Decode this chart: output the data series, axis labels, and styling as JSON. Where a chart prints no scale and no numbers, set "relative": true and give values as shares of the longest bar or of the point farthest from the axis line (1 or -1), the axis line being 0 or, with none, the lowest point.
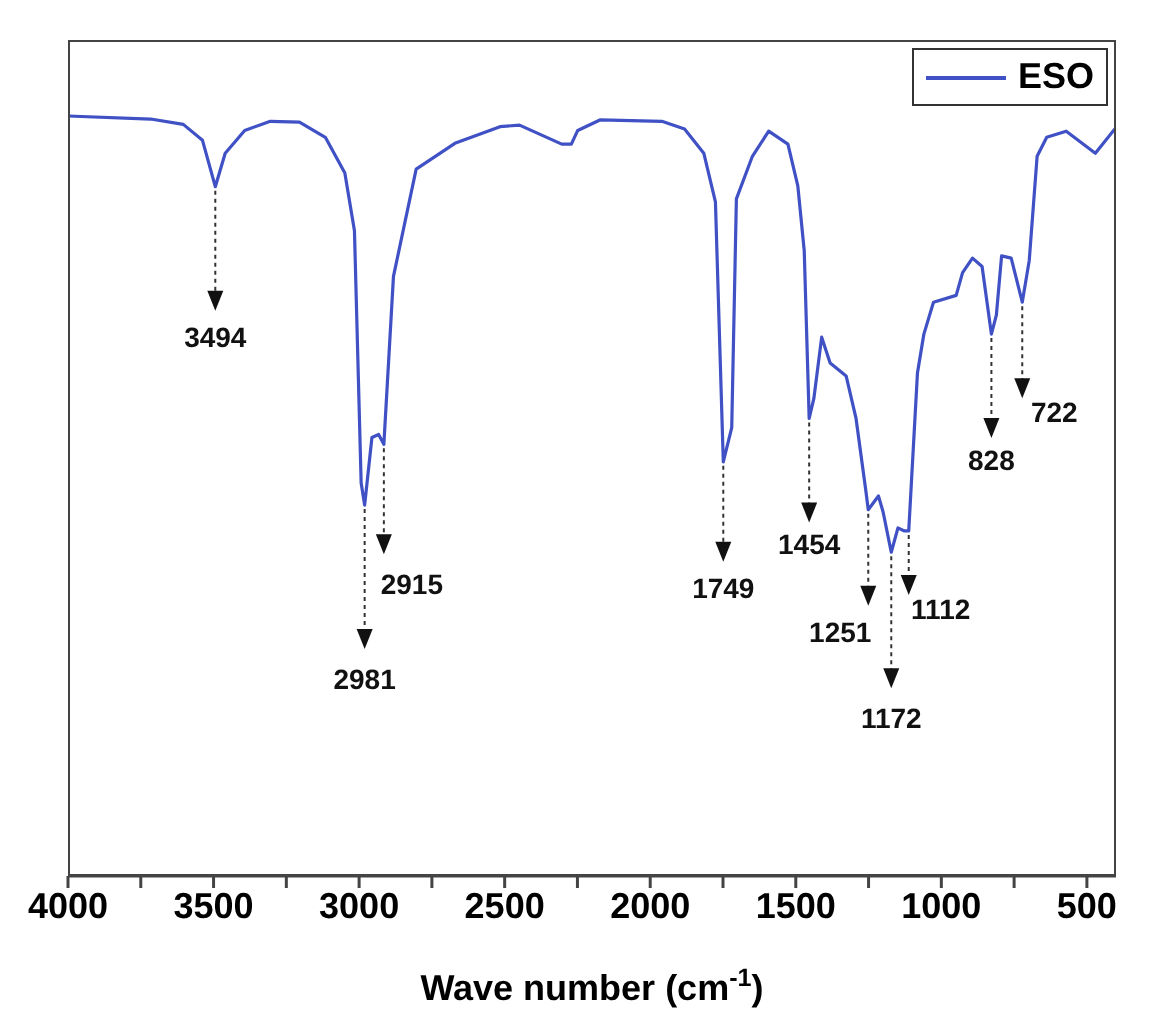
{
  "chart_data": {
    "type": "line",
    "relative": true,
    "xlabel": "Wave number (cm$^{-1}$)",
    "xlim": [
      4000,
      400
    ],
    "xticks": [
      4000,
      {
        "value": 3750,
        "label": null
      },
      3500,
      {
        "value": 3250,
        "label": null
      },
      3000,
      {
        "value": 2750,
        "label": null
      },
      2500,
      {
        "value": 2250,
        "label": null
      },
      2000,
      {
        "value": 1750,
        "label": null
      },
      1500,
      {
        "value": 1250,
        "label": null
      },
      1000,
      {
        "value": 750,
        "label": null
      },
      500
    ],
    "legend": "top right",
    "marker": "none",
    "line_style": "solid",
    "series": [
      {
        "name": "ESO",
        "color": "#3f51c4",
        "x": [
          4000,
          3716,
          3604,
          3538,
          3494,
          3460,
          3393,
          3305,
          3205,
          3116,
          3049,
          3016,
          2993,
          2981,
          2956,
          2933,
          2915,
          2882,
          2804,
          2671,
          2516,
          2449,
          2304,
          2271,
          2249,
          2171,
          1960,
          1882,
          1816,
          1776,
          1749,
          1720,
          1704,
          1649,
          1593,
          1527,
          1493,
          1471,
          1454,
          1438,
          1411,
          1382,
          1327,
          1293,
          1260,
          1251,
          1216,
          1200,
          1172,
          1149,
          1127,
          1112,
          1082,
          1060,
          1027,
          949,
          927,
          893,
          860,
          828,
          811,
          793,
          760,
          722,
          698,
          671,
          638,
          571,
          471,
          404
        ],
        "values": [
          1.0,
          0.996,
          0.989,
          0.968,
          0.907,
          0.951,
          0.981,
          0.993,
          0.992,
          0.972,
          0.925,
          0.849,
          0.517,
          0.488,
          0.577,
          0.581,
          0.568,
          0.789,
          0.93,
          0.964,
          0.986,
          0.988,
          0.963,
          0.963,
          0.981,
          0.995,
          0.993,
          0.983,
          0.951,
          0.887,
          0.545,
          0.59,
          0.891,
          0.947,
          0.98,
          0.963,
          0.908,
          0.823,
          0.602,
          0.628,
          0.709,
          0.675,
          0.658,
          0.602,
          0.509,
          0.482,
          0.5,
          0.479,
          0.426,
          0.458,
          0.454,
          0.454,
          0.662,
          0.713,
          0.755,
          0.764,
          0.794,
          0.813,
          0.802,
          0.713,
          0.738,
          0.816,
          0.813,
          0.755,
          0.81,
          0.947,
          0.972,
          0.98,
          0.951,
          0.983
        ]
      }
    ],
    "annotations": [
      {
        "text": "3494",
        "x": 3494,
        "y": 0.907
      },
      {
        "text": "2981",
        "x": 2981,
        "y": 0.488
      },
      {
        "text": "2915",
        "x": 2915,
        "y": 0.568
      },
      {
        "text": "1749",
        "x": 1749,
        "y": 0.545
      },
      {
        "text": "1454",
        "x": 1454,
        "y": 0.602
      },
      {
        "text": "1251",
        "x": 1251,
        "y": 0.482
      },
      {
        "text": "1172",
        "x": 1172,
        "y": 0.426
      },
      {
        "text": "1112",
        "x": 1112,
        "y": 0.454
      },
      {
        "text": "828",
        "x": 828,
        "y": 0.713
      },
      {
        "text": "722",
        "x": 722,
        "y": 0.755
      }
    ]
  }
}
